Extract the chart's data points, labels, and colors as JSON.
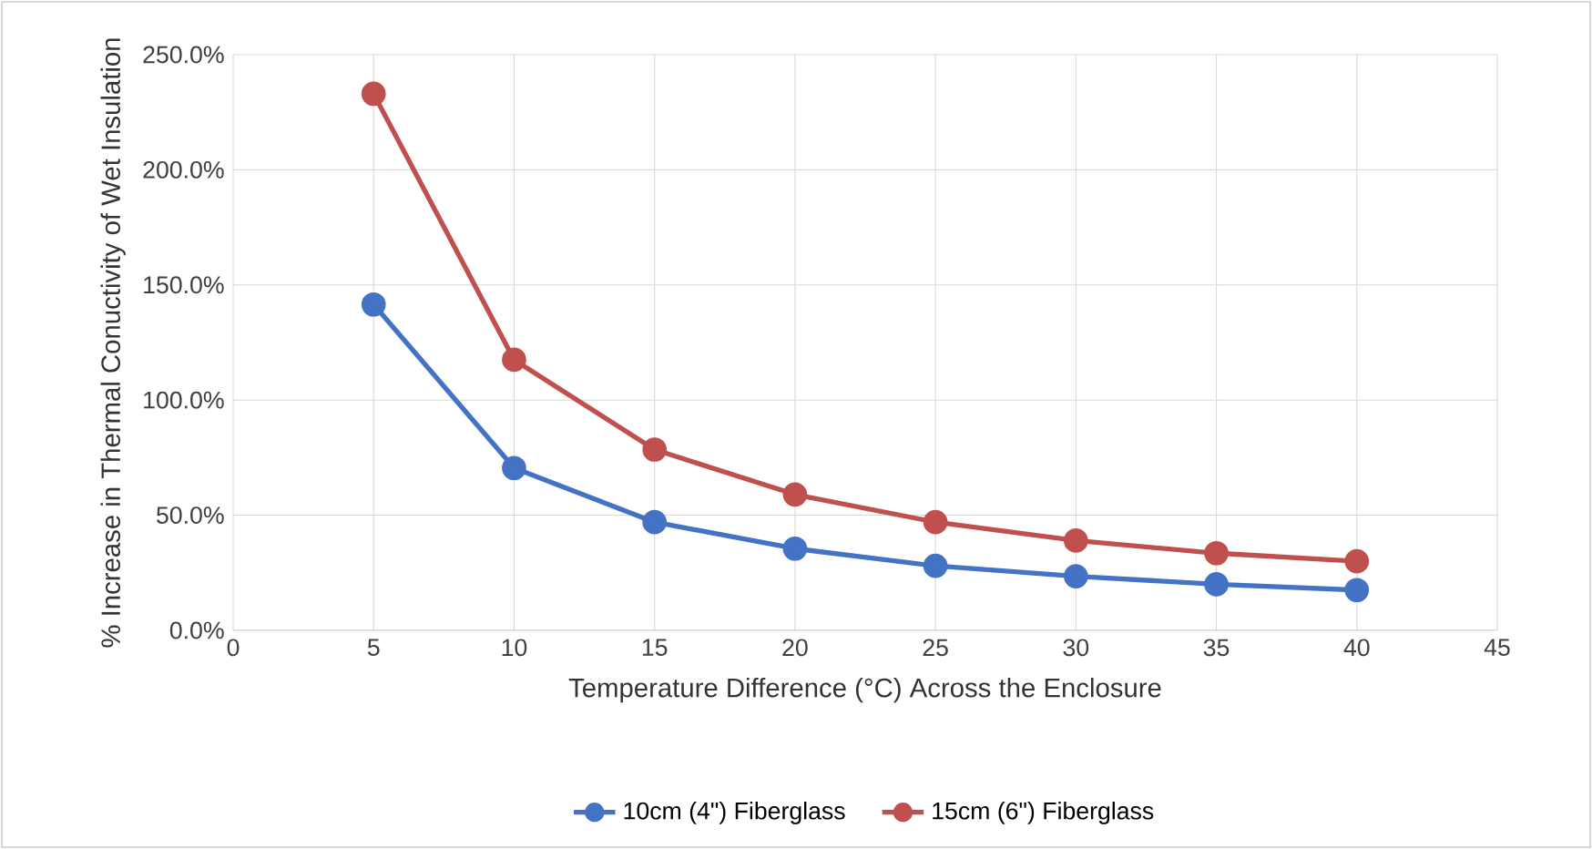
{
  "chart_data": {
    "type": "line",
    "xlabel": "Temperature Difference  (°C) Across the Enclosure",
    "ylabel": "% Increase in Thermal Conuctivity of Wet Insulation",
    "x": [
      5,
      10,
      15,
      20,
      25,
      30,
      35,
      40
    ],
    "series": [
      {
        "name": "10cm (4\") Fiberglass",
        "color": "#4472c4",
        "values": [
          141.5,
          70.5,
          47,
          35.5,
          28,
          23.5,
          20,
          17.5
        ]
      },
      {
        "name": "15cm (6\") Fiberglass",
        "color": "#c0504d",
        "values": [
          233,
          117.5,
          78.5,
          59,
          47,
          39,
          33.5,
          30
        ]
      }
    ],
    "xlim": [
      0,
      45
    ],
    "xticks": [
      0,
      5,
      10,
      15,
      20,
      25,
      30,
      35,
      40,
      45
    ],
    "ylim": [
      0,
      250
    ],
    "yticks": [
      {
        "value": 0,
        "label": "0.0%"
      },
      {
        "value": 50,
        "label": "50.0%"
      },
      {
        "value": 100,
        "label": "100.0%"
      },
      {
        "value": 150,
        "label": "150.0%"
      },
      {
        "value": 200,
        "label": "200.0%"
      },
      {
        "value": 250,
        "label": "250.0%"
      }
    ],
    "grid": true,
    "legend": "bottom",
    "marker": "circle",
    "line_style": "solid"
  }
}
